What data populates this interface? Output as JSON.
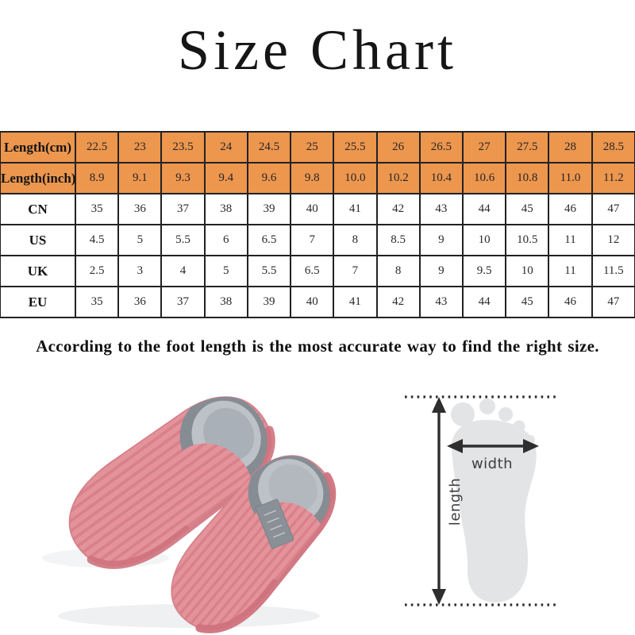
{
  "title": "Size Chart",
  "note": "According to the foot length is the most  accurate way to find the right size.",
  "chart_data": {
    "type": "table",
    "rows": [
      {
        "label": "Length(cm)",
        "highlight": true,
        "values": [
          "22.5",
          "23",
          "23.5",
          "24",
          "24.5",
          "25",
          "25.5",
          "26",
          "26.5",
          "27",
          "27.5",
          "28",
          "28.5"
        ]
      },
      {
        "label": "Length(inch)",
        "highlight": true,
        "values": [
          "8.9",
          "9.1",
          "9.3",
          "9.4",
          "9.6",
          "9.8",
          "10.0",
          "10.2",
          "10.4",
          "10.6",
          "10.8",
          "11.0",
          "11.2"
        ]
      },
      {
        "label": "CN",
        "highlight": false,
        "values": [
          "35",
          "36",
          "37",
          "38",
          "39",
          "40",
          "41",
          "42",
          "43",
          "44",
          "45",
          "46",
          "47"
        ]
      },
      {
        "label": "US",
        "highlight": false,
        "values": [
          "4.5",
          "5",
          "5.5",
          "6",
          "6.5",
          "7",
          "8",
          "8.5",
          "9",
          "10",
          "10.5",
          "11",
          "12"
        ]
      },
      {
        "label": "UK",
        "highlight": false,
        "values": [
          "2.5",
          "3",
          "4",
          "5",
          "5.5",
          "6.5",
          "7",
          "8",
          "9",
          "9.5",
          "10",
          "11",
          "11.5"
        ]
      },
      {
        "label": "EU",
        "highlight": false,
        "values": [
          "35",
          "36",
          "37",
          "38",
          "39",
          "40",
          "41",
          "42",
          "43",
          "44",
          "45",
          "46",
          "47"
        ]
      }
    ]
  },
  "diagram": {
    "width_label": "width",
    "length_label": "length"
  },
  "colors": {
    "header_bg": "#ed964e",
    "table_border": "#222222",
    "slipper_pink": "#e5939b",
    "slipper_pink_dark": "#d8818a",
    "slipper_sole": "#cf727d",
    "fur_dark": "#858c94",
    "fur_light": "#bcc2c8",
    "foot_gray": "#e3e4e6"
  }
}
